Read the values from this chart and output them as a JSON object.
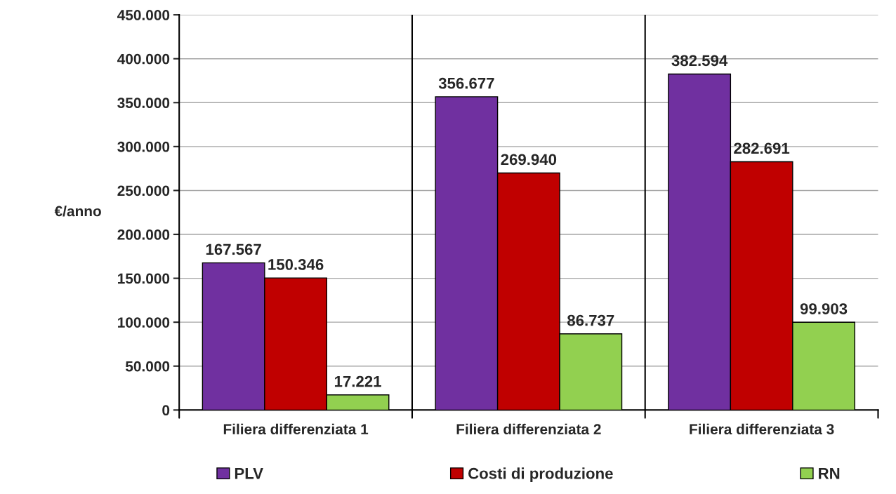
{
  "chart_data": {
    "type": "bar",
    "ylabel": "€/anno",
    "categories": [
      "Filiera differenziata 1",
      "Filiera differenziata 2",
      "Filiera differenziata 3"
    ],
    "series": [
      {
        "name": "PLV",
        "color": "#7030a0",
        "values": [
          167567,
          356677,
          382594
        ],
        "value_labels": [
          "167.567",
          "356.677",
          "382.594"
        ]
      },
      {
        "name": "Costi di produzione",
        "color": "#c00000",
        "values": [
          150346,
          269940,
          282691
        ],
        "value_labels": [
          "150.346",
          "269.940",
          "282.691"
        ]
      },
      {
        "name": "RN",
        "color": "#92d050",
        "values": [
          17221,
          86737,
          99903
        ],
        "value_labels": [
          "17.221",
          "86.737",
          "99.903"
        ]
      }
    ],
    "ylim": [
      0,
      450000
    ],
    "yticks": [
      {
        "value": 0,
        "label": "0"
      },
      {
        "value": 50000,
        "label": "50.000"
      },
      {
        "value": 100000,
        "label": "100.000"
      },
      {
        "value": 150000,
        "label": "150.000"
      },
      {
        "value": 200000,
        "label": "200.000"
      },
      {
        "value": 250000,
        "label": "250.000"
      },
      {
        "value": 300000,
        "label": "300.000"
      },
      {
        "value": 350000,
        "label": "350.000"
      },
      {
        "value": 400000,
        "label": "400.000"
      },
      {
        "value": 450000,
        "label": "450.000"
      }
    ],
    "grid": true,
    "legend": "bottom"
  }
}
